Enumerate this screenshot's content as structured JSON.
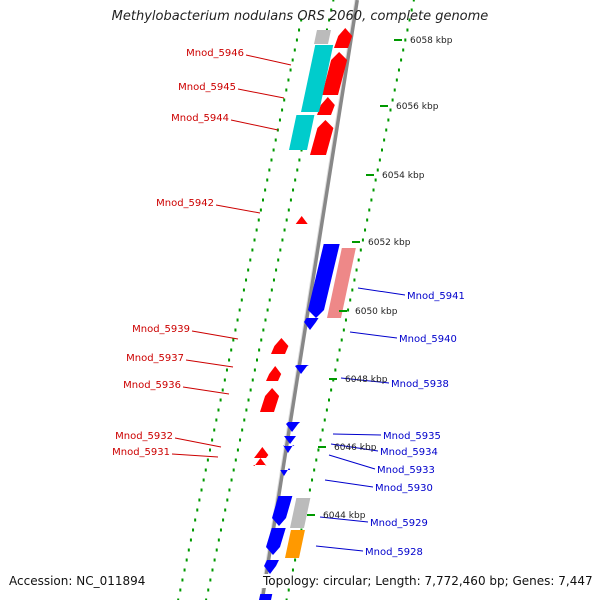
{
  "title": "Methylobacterium nodulans ORS 2060, complete genome",
  "accession": "Accession: NC_011894",
  "summary": "Topology: circular; Length: 7,772,460 bp; Genes: 7,447",
  "ticks": [
    "6058 kbp",
    "6056 kbp",
    "6054 kbp",
    "6052 kbp",
    "6050 kbp",
    "6048 kbp",
    "6046 kbp",
    "6044 kbp"
  ],
  "labels_forward": [
    "Mnod_5946",
    "Mnod_5945",
    "Mnod_5944",
    "Mnod_5942",
    "Mnod_5939",
    "Mnod_5937",
    "Mnod_5936",
    "Mnod_5932",
    "Mnod_5931"
  ],
  "labels_reverse": [
    "Mnod_5941",
    "Mnod_5940",
    "Mnod_5938",
    "Mnod_5935",
    "Mnod_5934",
    "Mnod_5933",
    "Mnod_5930",
    "Mnod_5929",
    "Mnod_5928"
  ],
  "colors": {
    "forward_label": "#cc0000",
    "reverse_label": "#0000cc",
    "forward_gene": "#ff0000",
    "reverse_gene": "#0000ff",
    "cog_cyan": "#00cccc",
    "cog_pink": "#ee8888",
    "cog_gray": "#bbbbbb",
    "cog_orange": "#ff9900",
    "backbone": "#888888",
    "ruler": "#009900"
  }
}
